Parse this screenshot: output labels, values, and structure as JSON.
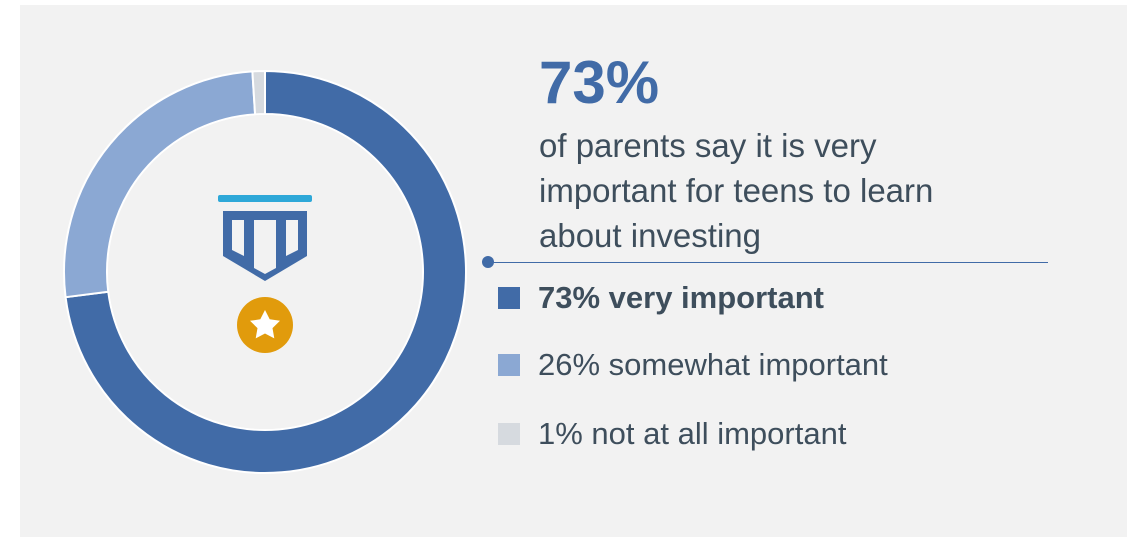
{
  "headline": {
    "stat": "73%",
    "description": "of parents say it is very important for teens to learn about investing"
  },
  "colors": {
    "very_important": "#416ba7",
    "somewhat_important": "#8ba8d3",
    "not_at_all_important": "#d6dadf",
    "background": "#f2f2f2",
    "icon_ribbon": "#416ba7",
    "icon_bar": "#2ea8d8",
    "icon_medal": "#e19b0c"
  },
  "icons": {
    "center": "medal-ribbon-icon",
    "medal": "star-medal-icon"
  },
  "chart_data": {
    "type": "pie",
    "style": "donut",
    "title": "",
    "categories": [
      "very important",
      "somewhat important",
      "not at all important"
    ],
    "values": [
      73,
      26,
      1
    ],
    "unit": "%",
    "legend": {
      "placement": "right",
      "entries": [
        {
          "label": "73% very important",
          "bold": true
        },
        {
          "label": "26% somewhat important",
          "bold": false
        },
        {
          "label": "1% not at all important",
          "bold": false
        }
      ]
    }
  }
}
